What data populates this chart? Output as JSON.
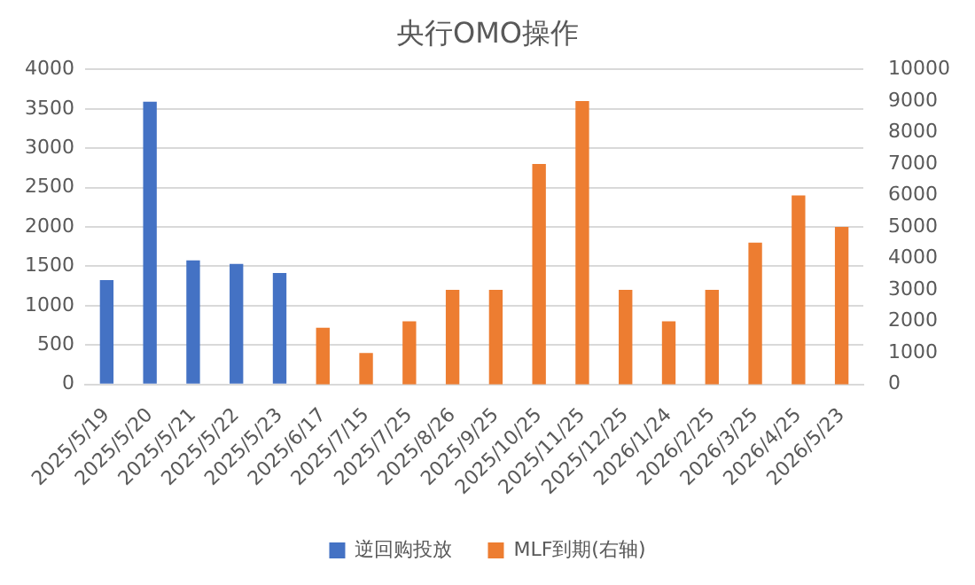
{
  "chart_data": {
    "type": "bar",
    "title": "央行OMO操作",
    "categories": [
      "2025/5/19",
      "2025/5/20",
      "2025/5/21",
      "2025/5/22",
      "2025/5/23",
      "2025/6/17",
      "2025/7/15",
      "2025/7/25",
      "2025/8/26",
      "2025/9/25",
      "2025/10/25",
      "2025/11/25",
      "2025/12/25",
      "2026/1/24",
      "2026/2/25",
      "2026/3/25",
      "2026/4/25",
      "2026/5/23"
    ],
    "series": [
      {
        "name": "逆回购投放",
        "color": "#4472c4",
        "values": [
          1325,
          3590,
          1575,
          1530,
          1415,
          null,
          null,
          null,
          null,
          null,
          null,
          null,
          null,
          null,
          null,
          null,
          null,
          null
        ]
      },
      {
        "name": "MLF到期(右轴)",
        "color": "#ed7d31",
        "axis": "y2",
        "values": [
          null,
          null,
          null,
          null,
          null,
          1800,
          1000,
          2000,
          3000,
          3000,
          7000,
          9000,
          3000,
          2000,
          3000,
          4500,
          6000,
          5000
        ]
      }
    ],
    "ylim": [
      0,
      4000
    ],
    "yticks": [
      0,
      500,
      1000,
      1500,
      2000,
      2500,
      3000,
      3500,
      4000
    ],
    "y2lim": [
      0,
      10000
    ],
    "y2ticks": [
      0,
      1000,
      2000,
      3000,
      4000,
      5000,
      6000,
      7000,
      8000,
      9000,
      10000
    ],
    "grid": "y",
    "legend": "bottom"
  }
}
